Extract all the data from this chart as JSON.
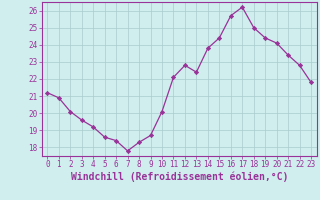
{
  "x": [
    0,
    1,
    2,
    3,
    4,
    5,
    6,
    7,
    8,
    9,
    10,
    11,
    12,
    13,
    14,
    15,
    16,
    17,
    18,
    19,
    20,
    21,
    22,
    23
  ],
  "y": [
    21.2,
    20.9,
    20.1,
    19.6,
    19.2,
    18.6,
    18.4,
    17.8,
    18.3,
    18.7,
    20.1,
    22.1,
    22.8,
    22.4,
    23.8,
    24.4,
    25.7,
    26.2,
    25.0,
    24.4,
    24.1,
    23.4,
    22.8,
    21.8
  ],
  "line_color": "#993399",
  "marker": "D",
  "marker_size": 2.2,
  "bg_color": "#d0eeee",
  "grid_color": "#aacccc",
  "xlabel": "Windchill (Refroidissement éolien,°C)",
  "ylabel": "",
  "xlim": [
    -0.5,
    23.5
  ],
  "ylim": [
    17.5,
    26.5
  ],
  "yticks": [
    18,
    19,
    20,
    21,
    22,
    23,
    24,
    25,
    26
  ],
  "xticks": [
    0,
    1,
    2,
    3,
    4,
    5,
    6,
    7,
    8,
    9,
    10,
    11,
    12,
    13,
    14,
    15,
    16,
    17,
    18,
    19,
    20,
    21,
    22,
    23
  ],
  "tick_color": "#993399",
  "label_color": "#993399",
  "tick_fontsize": 5.5,
  "xlabel_fontsize": 7.0
}
